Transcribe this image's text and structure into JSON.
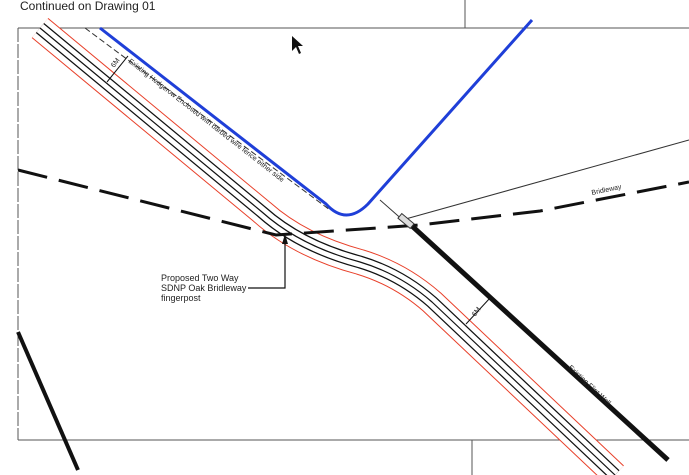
{
  "header": {
    "title": "Continued on Drawing 01"
  },
  "labels": {
    "hedgerow": "Existing Hedgerow Enclosed with barbed wire fence either side",
    "bridleway": "Bridleway",
    "fingerpost": [
      "Proposed Two Way",
      "SDNP Oak Bridleway",
      "fingerpost"
    ],
    "width_top": "6M",
    "width_bottom": "6M",
    "flint_wall": "Existing Flint Wall"
  }
}
